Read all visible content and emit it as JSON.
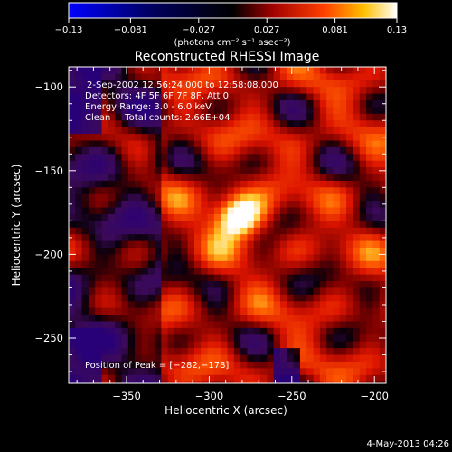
{
  "chart_data": {
    "type": "heatmap",
    "title": "Reconstructed RHESSI Image",
    "xlabel": "Heliocentric X (arcsec)",
    "ylabel": "Heliocentric Y (arcsec)",
    "xlim": [
      -385,
      -193
    ],
    "ylim": [
      -277,
      -88
    ],
    "x_ticks": [
      -350,
      -300,
      -250,
      -200
    ],
    "y_ticks": [
      -100,
      -150,
      -200,
      -250
    ],
    "x_tick_labels": [
      "−350",
      "−300",
      "−250",
      "−200"
    ],
    "y_tick_labels": [
      "−100",
      "−150",
      "−200",
      "−250"
    ],
    "annotations": [
      "2-Sep-2002 12:56:24.000 to 12:58:08.000",
      "Detectors: 4F 5F 6F 7F 8F, Att 0",
      "Energy Range: 3.0 - 6.0 keV",
      "Clean     Total counts: 2.66E+04"
    ],
    "peak_label": "Position of Peak = [−282,−178]",
    "peak": {
      "x": -282,
      "y": -178,
      "value": 0.13
    },
    "colorbar": {
      "min": -0.13,
      "max": 0.13,
      "ticks": [
        -0.13,
        -0.081,
        -0.027,
        0.027,
        0.081,
        0.13
      ],
      "tick_labels": [
        "−0.13",
        "−0.081",
        "−0.027",
        "0.027",
        "0.081",
        "0.13"
      ],
      "unit_label": "(photons cm⁻² s⁻¹ asec⁻²)",
      "colormap": [
        "#0000ff",
        "#000000",
        "#b00000",
        "#ff4000",
        "#ffc000",
        "#ffffff"
      ]
    },
    "grid": false
  },
  "footer": {
    "date_label": "4-May-2013 04:26"
  }
}
